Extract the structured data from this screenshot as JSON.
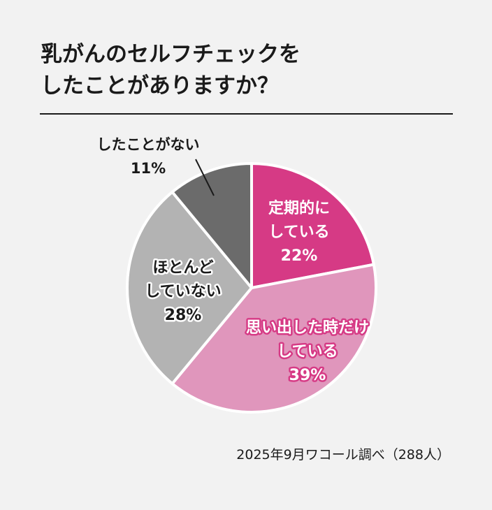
{
  "title_lines": [
    "乳がんのセルフチェックを",
    "したことがありますか？"
  ],
  "chart_data": {
    "type": "pie",
    "title": "乳がんのセルフチェックをしたことがありますか？",
    "slices": [
      {
        "lines": [
          "定期的に",
          "している"
        ],
        "value": 22,
        "value_label": "22%",
        "color": "#d63a85"
      },
      {
        "lines": [
          "思い出した時だけ",
          "している"
        ],
        "value": 39,
        "value_label": "39%",
        "color": "#e096bc"
      },
      {
        "lines": [
          "ほとんど",
          "していない"
        ],
        "value": 28,
        "value_label": "28%",
        "color": "#b3b3b3"
      },
      {
        "lines": [
          "したことがない"
        ],
        "value": 11,
        "value_label": "11%",
        "color": "#6b6b6b"
      }
    ],
    "start": "12 o'clock",
    "direction": "clockwise"
  },
  "source": "2025年9月ワコール調べ（288人）"
}
